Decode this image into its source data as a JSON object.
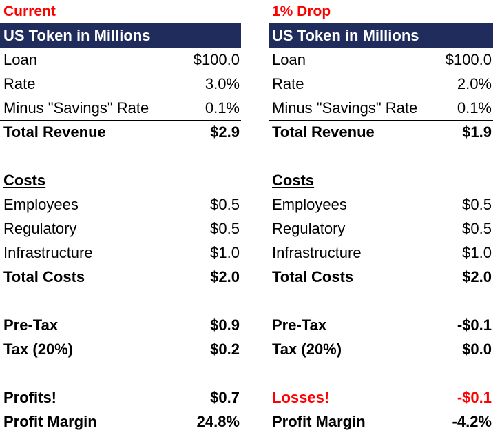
{
  "left": {
    "scenario_title": "Current",
    "header": "US Token in Millions",
    "loan": {
      "label": "Loan",
      "value": "$100.0"
    },
    "rate": {
      "label": "Rate",
      "value": "3.0%"
    },
    "savings_rate": {
      "label": "Minus \"Savings\" Rate",
      "value": "0.1%"
    },
    "total_revenue": {
      "label": "Total Revenue",
      "value": "$2.9"
    },
    "costs_title": "Costs",
    "employees": {
      "label": "Employees",
      "value": "$0.5"
    },
    "regulatory": {
      "label": "Regulatory",
      "value": "$0.5"
    },
    "infrastructure": {
      "label": "Infrastructure",
      "value": "$1.0"
    },
    "total_costs": {
      "label": "Total Costs",
      "value": "$2.0"
    },
    "pre_tax": {
      "label": "Pre-Tax",
      "value": "$0.9"
    },
    "tax": {
      "label": "Tax (20%)",
      "value": "$0.2"
    },
    "profits": {
      "label": "Profits!",
      "value": "$0.7"
    },
    "profit_margin": {
      "label": "Profit Margin",
      "value": "24.8%"
    }
  },
  "right": {
    "scenario_title": "1% Drop",
    "header": "US Token in Millions",
    "loan": {
      "label": "Loan",
      "value": "$100.0"
    },
    "rate": {
      "label": "Rate",
      "value": "2.0%"
    },
    "savings_rate": {
      "label": "Minus \"Savings\" Rate",
      "value": "0.1%"
    },
    "total_revenue": {
      "label": "Total Revenue",
      "value": "$1.9"
    },
    "costs_title": "Costs",
    "employees": {
      "label": "Employees",
      "value": "$0.5"
    },
    "regulatory": {
      "label": "Regulatory",
      "value": "$0.5"
    },
    "infrastructure": {
      "label": "Infrastructure",
      "value": "$1.0"
    },
    "total_costs": {
      "label": "Total Costs",
      "value": "$2.0"
    },
    "pre_tax": {
      "label": "Pre-Tax",
      "value": "-$0.1"
    },
    "tax": {
      "label": "Tax (20%)",
      "value": "$0.0"
    },
    "losses": {
      "label": "Losses!",
      "value": "-$0.1"
    },
    "profit_margin": {
      "label": "Profit Margin",
      "value": "-4.2%"
    }
  },
  "colors": {
    "header_bg": "#1f2c5c",
    "header_text": "#ffffff",
    "accent_red": "#ff0000"
  }
}
